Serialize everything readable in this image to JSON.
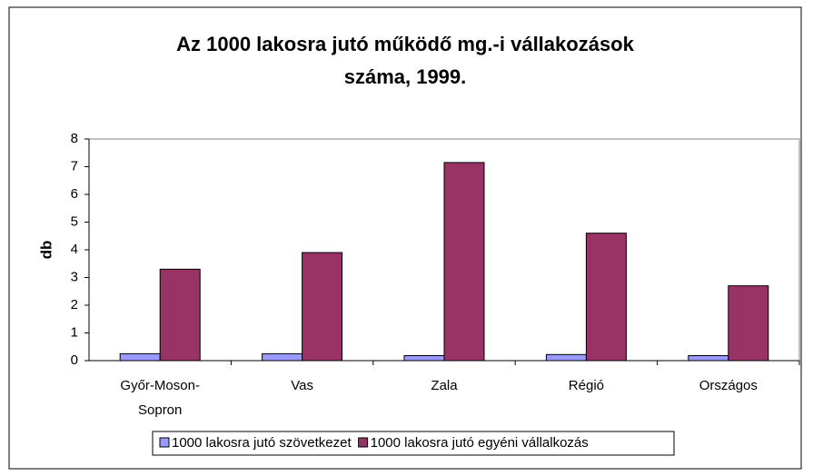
{
  "chart_data": {
    "type": "bar",
    "title": [
      "Az 1000 lakosra jutó működő mg.-i vállakozások",
      "száma, 1999."
    ],
    "y_label": "db",
    "categories": [
      "Győr-Moson-Sopron",
      "Vas",
      "Zala",
      "Régió",
      "Országos"
    ],
    "series": [
      {
        "name": "1000 lakosra jutó szövetkezet",
        "color": "#9999ff",
        "values": [
          0.25,
          0.25,
          0.18,
          0.22,
          0.18
        ]
      },
      {
        "name": "1000 lakosra jutó egyéni vállalkozás",
        "color": "#993366",
        "values": [
          3.3,
          3.9,
          7.15,
          4.6,
          2.7
        ]
      }
    ],
    "ylim": [
      0,
      8
    ],
    "yticks": [
      0,
      1,
      2,
      3,
      4,
      5,
      6,
      7,
      8
    ],
    "grid": false,
    "legend": "bottom"
  }
}
